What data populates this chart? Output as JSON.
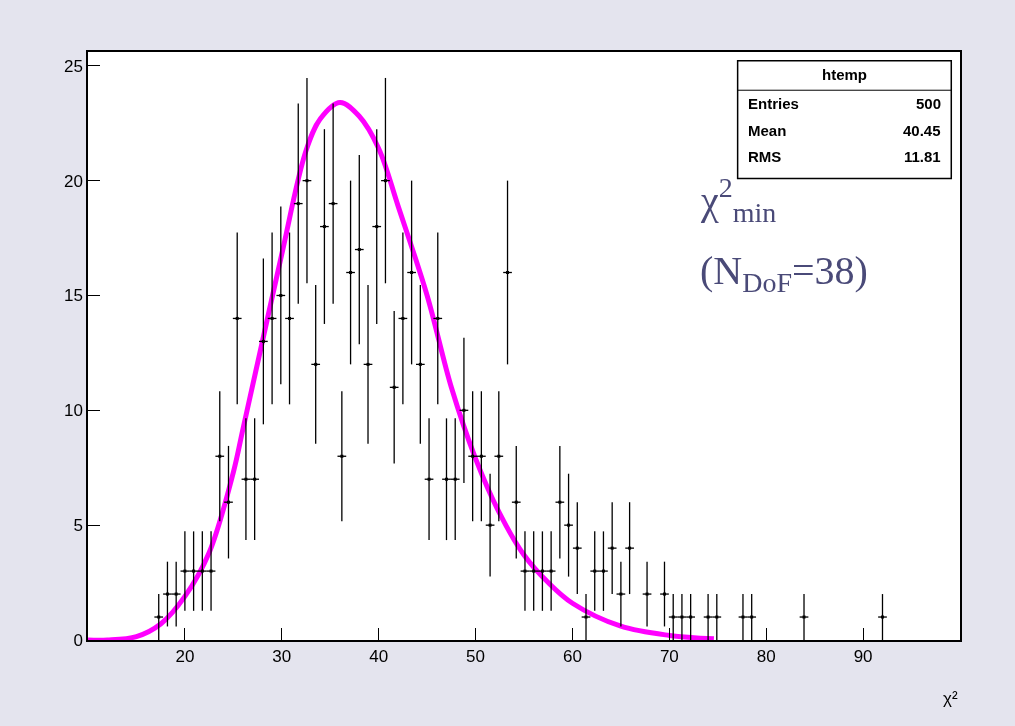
{
  "chart_data": {
    "type": "scatter",
    "xlabel": "χ²",
    "xlim": [
      10,
      100
    ],
    "ylim": [
      0,
      25.6
    ],
    "xticks": [
      20,
      30,
      40,
      50,
      60,
      70,
      80,
      90
    ],
    "yticks": [
      0,
      5,
      10,
      15,
      20,
      25
    ],
    "grid": false,
    "annotations": [
      "htemp",
      "Entries",
      "500",
      "Mean",
      "40.45",
      "RMS",
      "11.81",
      "χ$^{2}$$_{min}$",
      "(N$_{DoF}$=38)"
    ],
    "series": [
      {
        "color": "#000000",
        "x": [
          17.3,
          18.2,
          19.1,
          20.0,
          20.9,
          21.8,
          22.7,
          23.6,
          24.5,
          25.4,
          26.3,
          27.2,
          28.1,
          29.0,
          29.9,
          30.8,
          31.7,
          32.6,
          33.5,
          34.4,
          35.3,
          36.2,
          37.1,
          38.0,
          38.9,
          39.8,
          40.7,
          41.6,
          42.5,
          43.4,
          44.3,
          45.2,
          46.1,
          47.0,
          47.9,
          48.8,
          49.7,
          50.6,
          51.5,
          52.4,
          53.3,
          54.2,
          55.1,
          56.0,
          56.9,
          57.8,
          58.7,
          59.6,
          60.5,
          61.4,
          62.3,
          63.2,
          64.1,
          65.0,
          65.9,
          67.7,
          69.5,
          70.4,
          71.3,
          72.2,
          74.0,
          74.9,
          77.6,
          78.5,
          83.9,
          92.0
        ],
        "values": [
          1,
          2,
          2,
          3,
          3,
          3,
          3,
          8,
          6,
          14,
          7,
          7,
          13,
          14,
          15,
          14,
          19,
          20,
          12,
          18,
          19,
          8,
          16,
          17,
          12,
          18,
          20,
          11,
          14,
          16,
          12,
          7,
          14,
          7,
          7,
          10,
          8,
          8,
          5,
          8,
          16,
          6,
          3,
          3,
          3,
          3,
          6,
          5,
          4,
          1,
          3,
          3,
          4,
          2,
          4,
          2,
          2,
          1,
          1,
          1,
          1,
          1,
          1,
          1,
          1,
          1
        ],
        "errors": [
          1.0,
          1.41,
          1.41,
          1.73,
          1.73,
          1.73,
          1.73,
          2.83,
          2.45,
          3.74,
          2.65,
          2.65,
          3.61,
          3.74,
          3.87,
          3.74,
          4.36,
          4.47,
          3.46,
          4.24,
          4.36,
          2.83,
          4.0,
          4.12,
          3.46,
          4.24,
          4.47,
          3.32,
          3.74,
          4.0,
          3.46,
          2.65,
          3.74,
          2.65,
          2.65,
          3.16,
          2.83,
          2.83,
          2.24,
          2.83,
          4.0,
          2.45,
          1.73,
          1.73,
          1.73,
          1.73,
          2.45,
          2.24,
          2.0,
          1.0,
          1.73,
          1.73,
          2.0,
          1.41,
          2.0,
          1.41,
          1.41,
          1.0,
          1.0,
          1.0,
          1.0,
          1.0,
          1.0,
          1.0,
          1.0,
          1.0
        ],
        "xerrors": [
          0.45,
          0.45,
          0.45,
          0.45,
          0.45,
          0.45,
          0.45,
          0.45,
          0.45,
          0.45,
          0.45,
          0.45,
          0.45,
          0.45,
          0.45,
          0.45,
          0.45,
          0.45,
          0.45,
          0.45,
          0.45,
          0.45,
          0.45,
          0.45,
          0.45,
          0.45,
          0.45,
          0.45,
          0.45,
          0.45,
          0.45,
          0.45,
          0.45,
          0.45,
          0.45,
          0.45,
          0.45,
          0.45,
          0.45,
          0.45,
          0.45,
          0.45,
          0.45,
          0.45,
          0.45,
          0.45,
          0.45,
          0.45,
          0.45,
          0.45,
          0.45,
          0.45,
          0.45,
          0.45,
          0.45,
          0.45,
          0.45,
          0.45,
          0.45,
          0.45,
          0.45,
          0.45,
          0.45,
          0.45,
          0.45,
          0.45
        ]
      },
      {
        "type": "line",
        "color": "#ff00ff",
        "marker": "none",
        "x": [
          10,
          12,
          15,
          17.5,
          20,
          22.5,
          25,
          26,
          28,
          30,
          32.5,
          34,
          36,
          38,
          40,
          42,
          45,
          47.5,
          50,
          52.5,
          55,
          57.5,
          60,
          65,
          70,
          74.6
        ],
        "values": [
          0.0,
          0.0,
          0.15,
          0.7,
          1.9,
          3.8,
          7.3,
          9.2,
          13.0,
          16.8,
          21.3,
          22.7,
          23.4,
          22.8,
          21.4,
          18.9,
          15.0,
          11.0,
          7.9,
          5.5,
          3.7,
          2.5,
          1.6,
          0.6,
          0.2,
          0.05
        ]
      }
    ]
  }
}
